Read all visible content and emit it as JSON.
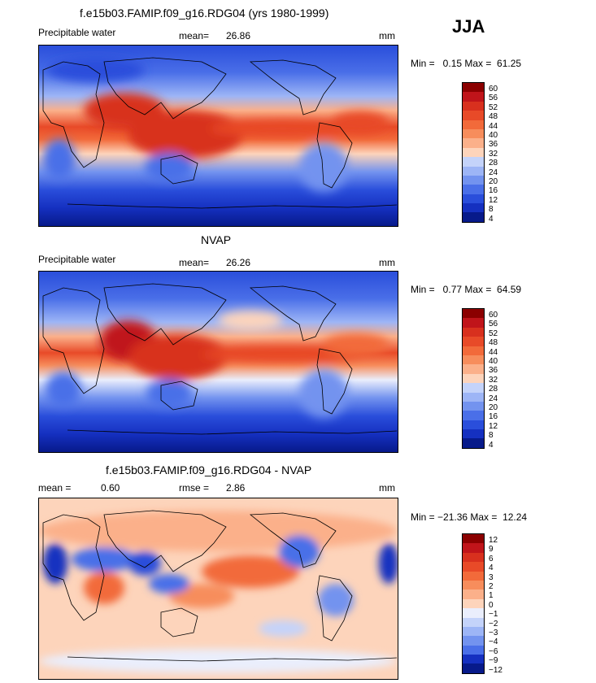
{
  "season": "JJA",
  "panels": [
    {
      "title": "f.e15b03.FAMIP.f09_g16.RDG04 (yrs 1980-1999)",
      "left_label": "Precipitable water",
      "stat_label": "mean=",
      "stat_value": "26.86",
      "units": "mm",
      "minmax": "Min =   0.15 Max =  61.25",
      "levels": [
        "60",
        "56",
        "52",
        "48",
        "44",
        "40",
        "36",
        "32",
        "28",
        "24",
        "20",
        "16",
        "12",
        "8",
        "4"
      ]
    },
    {
      "title": "NVAP",
      "left_label": "Precipitable water",
      "stat_label": "mean=",
      "stat_value": "26.26",
      "units": "mm",
      "minmax": "Min =   0.77 Max =  64.59",
      "levels": [
        "60",
        "56",
        "52",
        "48",
        "44",
        "40",
        "36",
        "32",
        "28",
        "24",
        "20",
        "16",
        "12",
        "8",
        "4"
      ]
    },
    {
      "title": "f.e15b03.FAMIP.f09_g16.RDG04 - NVAP",
      "left_label": "mean =",
      "left_value": "0.60",
      "stat_label": "rmse =",
      "stat_value": "2.86",
      "units": "mm",
      "minmax": "Min = −21.36 Max =  12.24",
      "levels": [
        "12",
        "9",
        "6",
        "4",
        "3",
        "2",
        "1",
        "0",
        "−1",
        "−2",
        "−3",
        "−4",
        "−6",
        "−9",
        "−12"
      ]
    }
  ],
  "colors": {
    "scale16": [
      "#8b0000",
      "#c0141a",
      "#d8301e",
      "#e84a28",
      "#f26a3a",
      "#f78d5c",
      "#fbb08a",
      "#fdd4bb",
      "#eaeefc",
      "#c4d3fa",
      "#9db5f6",
      "#7393ef",
      "#4a6fe8",
      "#2a4edb",
      "#1530c0",
      "#071a8a"
    ]
  },
  "chart_data": [
    {
      "type": "heatmap",
      "title": "f.e15b03.FAMIP.f09_g16.RDG04 (yrs 1980-1999)",
      "variable": "Precipitable water",
      "units": "mm",
      "season": "JJA",
      "mean": 26.86,
      "min": 0.15,
      "max": 61.25,
      "contour_levels": [
        4,
        8,
        12,
        16,
        20,
        24,
        28,
        32,
        36,
        40,
        44,
        48,
        52,
        56,
        60
      ]
    },
    {
      "type": "heatmap",
      "title": "NVAP",
      "variable": "Precipitable water",
      "units": "mm",
      "season": "JJA",
      "mean": 26.26,
      "min": 0.77,
      "max": 64.59,
      "contour_levels": [
        4,
        8,
        12,
        16,
        20,
        24,
        28,
        32,
        36,
        40,
        44,
        48,
        52,
        56,
        60
      ]
    },
    {
      "type": "heatmap",
      "title": "f.e15b03.FAMIP.f09_g16.RDG04 - NVAP",
      "units": "mm",
      "season": "JJA",
      "mean": 0.6,
      "rmse": 2.86,
      "min": -21.36,
      "max": 12.24,
      "contour_levels": [
        -12,
        -9,
        -6,
        -4,
        -3,
        -2,
        -1,
        0,
        1,
        2,
        3,
        4,
        6,
        9,
        12
      ]
    }
  ]
}
